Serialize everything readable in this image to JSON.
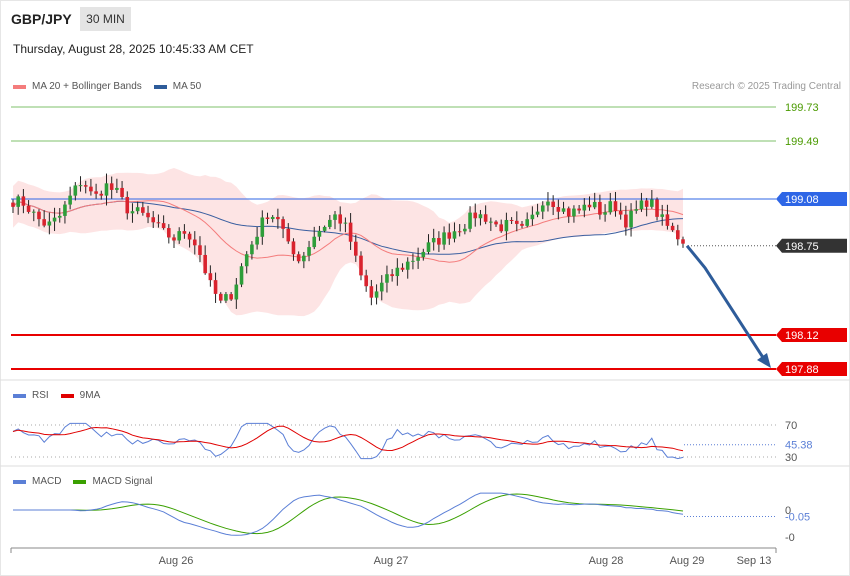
{
  "header": {
    "symbol": "GBP/JPY",
    "timeframe": "30 MIN",
    "datetime": "Thursday, August 28, 2025 10:45:33 AM CET",
    "credit": "Research © 2025 Trading Central"
  },
  "legends": {
    "price": [
      {
        "label": "MA 20 + Bollinger Bands",
        "color": "#f47c7c"
      },
      {
        "label": "MA 50",
        "color": "#2e5c9a"
      }
    ],
    "rsi": [
      {
        "label": "RSI",
        "color": "#5b7fd6"
      },
      {
        "label": "9MA",
        "color": "#e00000"
      }
    ],
    "macd": [
      {
        "label": "MACD",
        "color": "#5b7fd6"
      },
      {
        "label": "MACD Signal",
        "color": "#3aa000"
      }
    ]
  },
  "colors": {
    "bull": "#2e9e3a",
    "bear": "#d9232e",
    "band_fill": "#fde4e4",
    "resistance": "#7fc26b",
    "pivot": "#2e66e6",
    "support": "#e80000",
    "arrow": "#2e5c9a",
    "current": "#333333"
  },
  "chart_data": [
    {
      "type": "candlestick",
      "ylim": [
        197.82,
        199.91
      ],
      "current_price": 198.75,
      "levels": [
        {
          "value": 199.73,
          "label": "199.73",
          "kind": "resistance"
        },
        {
          "value": 199.49,
          "label": "199.49",
          "kind": "resistance"
        },
        {
          "value": 199.08,
          "label": "199.08",
          "kind": "pivot"
        },
        {
          "value": 198.75,
          "label": "198.75",
          "kind": "current"
        },
        {
          "value": 198.12,
          "label": "198.12",
          "kind": "support"
        },
        {
          "value": 197.88,
          "label": "197.88",
          "kind": "support"
        }
      ],
      "path": [
        199.07,
        199.05,
        198.95,
        198.89,
        198.95,
        199.1,
        199.22,
        199.08,
        199.18,
        199.12,
        199.0,
        198.98,
        198.92,
        198.84,
        198.8,
        198.86,
        198.74,
        198.48,
        198.34,
        198.42,
        198.65,
        198.82,
        198.98,
        198.95,
        198.7,
        198.66,
        198.82,
        198.9,
        198.97,
        198.85,
        198.55,
        198.38,
        198.48,
        198.56,
        198.62,
        198.68,
        198.75,
        198.8,
        198.85,
        198.9,
        198.97,
        198.95,
        198.88,
        198.9,
        198.85,
        198.95,
        199.1,
        199.05,
        198.98,
        199.0,
        199.05,
        198.98,
        199.05,
        198.92,
        199.0,
        199.08,
        198.95,
        198.85,
        198.79
      ]
    },
    {
      "type": "line",
      "name": "RSI",
      "levels": [
        {
          "value": 70,
          "label": "70"
        },
        {
          "value": 30,
          "label": "30"
        }
      ],
      "current": 45.38,
      "current_label": "45.38"
    },
    {
      "type": "line",
      "name": "MACD",
      "levels": [
        {
          "value": 0,
          "label": "0"
        }
      ],
      "extra_tick": "-0",
      "current": -0.05,
      "current_label": "-0.05"
    },
    {
      "type": "axis",
      "x_labels": [
        "Aug 26",
        "Aug 27",
        "Aug 28",
        "Aug 29",
        "Sep 13"
      ]
    }
  ]
}
